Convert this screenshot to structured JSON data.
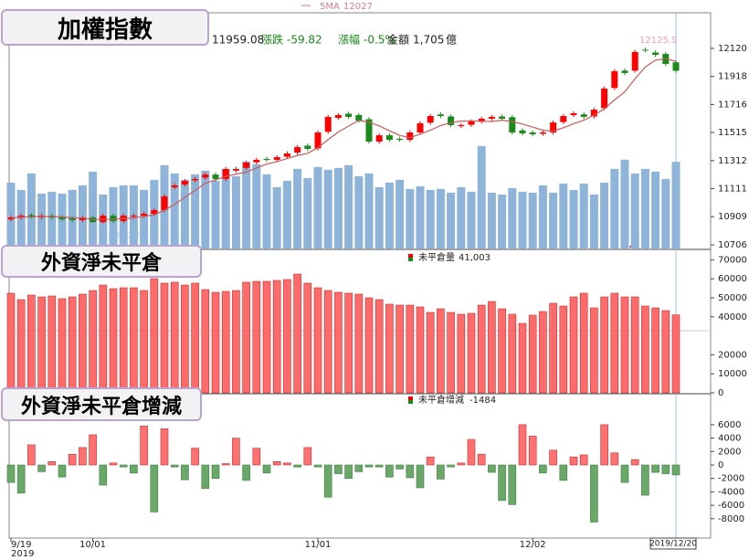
{
  "chart_data": [
    {
      "type": "candlestick",
      "title": "加權指數",
      "categories": [
        "9/19",
        null,
        null,
        null,
        null,
        null,
        null,
        null,
        "10/01",
        null,
        null,
        null,
        null,
        null,
        null,
        null,
        null,
        null,
        null,
        null,
        null,
        null,
        null,
        null,
        null,
        null,
        null,
        null,
        null,
        null,
        "11/01",
        null,
        null,
        null,
        null,
        null,
        null,
        null,
        null,
        null,
        null,
        null,
        null,
        null,
        null,
        null,
        null,
        null,
        null,
        null,
        null,
        "12/02",
        null,
        null,
        null,
        null,
        null,
        null,
        null,
        null,
        null,
        null,
        null,
        null,
        null,
        null
      ],
      "year_label": "2019",
      "cursor_label": "2019/12/20",
      "info": {
        "change_label": "漲跌",
        "change": -59.82,
        "pct_label": "漲幅",
        "pct": {
          "value": -0.5,
          "label": "-0.5%"
        },
        "amount_label": "金額",
        "amount": {
          "value": 1705,
          "label": "1,705"
        },
        "amount_unit": "億"
      },
      "open": [
        10890,
        10903,
        10920,
        10905,
        10916,
        10903,
        10895,
        10884,
        10903,
        10870,
        10916,
        10877,
        10910,
        10916,
        10930,
        10956,
        11120,
        11140,
        11170,
        11190,
        11212,
        11180,
        11240,
        11260,
        11300,
        11325,
        11318,
        11340,
        11370,
        11420,
        11400,
        11520,
        11620,
        11650,
        11640,
        11610,
        11449,
        11495,
        11470,
        11462,
        11515,
        11585,
        11645,
        11630,
        11560,
        11570,
        11594,
        11614,
        11630,
        11625,
        11530,
        11515,
        11505,
        11515,
        11590,
        11640,
        11645,
        11630,
        11690,
        11835,
        11960,
        11960,
        12110,
        12090,
        12080,
        12020
      ],
      "high": [
        10918,
        10931,
        10935,
        10931,
        10931,
        10918,
        10910,
        10918,
        10918,
        10931,
        10931,
        10931,
        10931,
        10945,
        10971,
        11070,
        11149,
        11181,
        11195,
        11227,
        11227,
        11267,
        11267,
        11313,
        11333,
        11340,
        11352,
        11379,
        11425,
        11435,
        11530,
        11642,
        11655,
        11665,
        11655,
        11625,
        11510,
        11510,
        11485,
        11530,
        11596,
        11648,
        11660,
        11645,
        11583,
        11609,
        11629,
        11642,
        11645,
        11640,
        11545,
        11530,
        11530,
        11602,
        11648,
        11668,
        11660,
        11694,
        11846,
        11971,
        11975,
        12109,
        12125.9,
        12105,
        12095,
        12035
      ],
      "low": [
        10875,
        10888,
        10895,
        10890,
        10888,
        10875,
        10869,
        10869,
        10865,
        10859.28,
        10862,
        10862,
        10895,
        10901,
        10915,
        10941,
        11105,
        11125,
        11155,
        11175,
        11165,
        11165,
        11225,
        11245,
        11285,
        11303,
        11303,
        11325,
        11355,
        11382,
        11385,
        11505,
        11605,
        11612,
        11585,
        11434,
        11434,
        11447,
        11447,
        11447,
        11500,
        11570,
        11618,
        11553,
        11545,
        11555,
        11579,
        11599,
        11599,
        11500,
        11493,
        11487,
        11490,
        11500,
        11575,
        11625,
        11612,
        11615,
        11675,
        11820,
        11928,
        11945,
        12092,
        12059,
        11993,
        11944
      ],
      "close": [
        10903,
        10916,
        10910,
        10916,
        10903,
        10890,
        10884,
        10903,
        10870,
        10916,
        10877,
        10916,
        10916,
        10930,
        10956,
        11055,
        11134,
        11166,
        11180,
        11212,
        11180,
        11252,
        11252,
        11298,
        11318,
        11318,
        11337,
        11364,
        11410,
        11397,
        11515,
        11627,
        11640,
        11627,
        11600,
        11449,
        11495,
        11462,
        11462,
        11515,
        11581,
        11633,
        11633,
        11568,
        11568,
        11594,
        11614,
        11627,
        11614,
        11515,
        11508,
        11502,
        11515,
        11587,
        11633,
        11653,
        11627,
        11679,
        11831,
        11956,
        11943,
        12094,
        12107,
        12074,
        12008,
        11959.08
      ],
      "up_color": "#ff0000",
      "down_color": "#1a8a1a",
      "ma": {
        "name": "5MA",
        "color": "#c85a5a",
        "values": [
          10900,
          10905,
          10908,
          10910,
          10910,
          10907,
          10901,
          10899,
          10890,
          10889,
          10890,
          10896,
          10899,
          10911,
          10923,
          10955,
          10998,
          11048,
          11098,
          11149,
          11174,
          11198,
          11215,
          11229,
          11260,
          11288,
          11305,
          11327,
          11349,
          11365,
          11405,
          11463,
          11518,
          11561,
          11602,
          11589,
          11562,
          11527,
          11494,
          11477,
          11503,
          11531,
          11565,
          11586,
          11597,
          11599,
          11595,
          11594,
          11603,
          11593,
          11576,
          11553,
          11531,
          11525,
          11549,
          11578,
          11603,
          11640,
          11685,
          11749,
          11807,
          11901,
          11986,
          12035,
          12046,
          12027
        ]
      },
      "volume": {
        "color": "#8fb4d9",
        "ylim": [
          0,
          4600
        ],
        "values": [
          1296,
          1152,
          1476,
          1080,
          1116,
          1080,
          1152,
          1242,
          1512,
          1062,
          1206,
          1242,
          1242,
          1152,
          1350,
          1638,
          1476,
          1350,
          1458,
          1530,
          1332,
          1566,
          1422,
          1710,
          1656,
          1458,
          1206,
          1332,
          1566,
          1386,
          1602,
          1548,
          1584,
          1638,
          1422,
          1476,
          1206,
          1296,
          1350,
          1170,
          1224,
          1152,
          1170,
          1098,
          1206,
          1116,
          2016,
          1098,
          1062,
          1188,
          1116,
          1098,
          1242,
          1098,
          1278,
          1152,
          1278,
          1062,
          1296,
          1566,
          1746,
          1476,
          1566,
          1512,
          1368,
          1705
        ]
      },
      "ylim": [
        10680,
        12363
      ],
      "yticks": [
        10706,
        10909,
        11111,
        11312,
        11515,
        11716,
        11918,
        12120
      ]
    },
    {
      "type": "bar",
      "title": "外資淨未平倉",
      "series": [
        {
          "name": "未平倉量",
          "color": "#ff6a6a",
          "values": [
            52400,
            49040,
            51440,
            50480,
            50960,
            49520,
            50480,
            51930,
            53850,
            56730,
            54810,
            55290,
            55290,
            53850,
            60100,
            57700,
            58180,
            56730,
            57700,
            54330,
            52890,
            53370,
            53850,
            58180,
            58660,
            58660,
            59140,
            59620,
            62500,
            57700,
            55290,
            53850,
            52890,
            52410,
            51930,
            50000,
            49040,
            46640,
            46160,
            46160,
            45200,
            42310,
            44230,
            42310,
            41350,
            41830,
            46160,
            48080,
            44230,
            41350,
            36540,
            40870,
            42790,
            47120,
            45680,
            50480,
            52410,
            44710,
            50480,
            52410,
            50480,
            50480,
            45680,
            44710,
            43270,
            41003
          ]
        }
      ],
      "legend_value": {
        "value": 41003,
        "label": "41,003"
      },
      "ylim": [
        0,
        75000
      ],
      "yticks": [
        0,
        10000,
        20000,
        40000,
        50000,
        60000,
        70000
      ]
    },
    {
      "type": "bar",
      "title": "外資淨未平倉增減",
      "series": [
        {
          "name": "未平倉增減",
          "color": "#ff7070",
          "neg_color": "#6aa86a",
          "values": [
            -2600,
            -4200,
            3000,
            -1000,
            500,
            -1800,
            1600,
            2600,
            4500,
            -3000,
            300,
            -300,
            -1200,
            5800,
            -7000,
            5400,
            -300,
            -2200,
            2500,
            -3500,
            -2000,
            200,
            4000,
            -2300,
            2500,
            -1200,
            500,
            300,
            -300,
            2600,
            -300,
            -4800,
            -1300,
            -2000,
            -1000,
            -300,
            -300,
            -1800,
            -600,
            -1900,
            -3400,
            1200,
            -2100,
            -300,
            300,
            3800,
            1600,
            -1100,
            -5300,
            -5900,
            6000,
            4300,
            -1200,
            2200,
            -2300,
            1200,
            1500,
            -8500,
            6000,
            1800,
            -2600,
            800,
            -4500,
            -1100,
            -1300,
            -1484
          ]
        }
      ],
      "ylim": [
        -10750,
        10340
      ],
      "yticks": [
        -8000,
        -6000,
        -4000,
        -2000,
        0,
        2000,
        4000,
        6000
      ]
    }
  ]
}
